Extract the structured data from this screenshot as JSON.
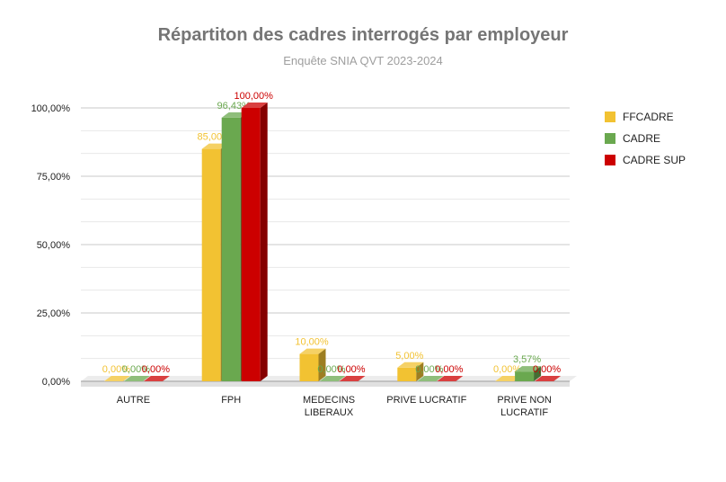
{
  "chart_data": {
    "type": "bar",
    "title": "Répartiton des cadres interrogés par employeur",
    "subtitle": "Enquête SNIA QVT 2023-2024",
    "categories": [
      "AUTRE",
      "FPH",
      "MEDECINS LIBERAUX",
      "PRIVE LUCRATIF",
      "PRIVE NON LUCRATIF"
    ],
    "category_lines": [
      [
        "AUTRE"
      ],
      [
        "FPH"
      ],
      [
        "MEDECINS",
        "LIBERAUX"
      ],
      [
        "PRIVE LUCRATIF"
      ],
      [
        "PRIVE NON",
        "LUCRATIF"
      ]
    ],
    "series": [
      {
        "name": "FFCADRE",
        "color": "#f2c232",
        "values": [
          0,
          85,
          10,
          5,
          0
        ],
        "labels": [
          "0,00%",
          "85,00%",
          "10,00%",
          "5,00%",
          "0,00%"
        ]
      },
      {
        "name": "CADRE",
        "color": "#6aa84f",
        "values": [
          0,
          96.43,
          0,
          0,
          3.57
        ],
        "labels": [
          "0,00%",
          "96,43%",
          "0,00%",
          "0,00%",
          "3,57%"
        ]
      },
      {
        "name": "CADRE SUP",
        "color": "#cc0000",
        "values": [
          0,
          100,
          0,
          0,
          0
        ],
        "labels": [
          "0,00%",
          "100,00%",
          "0,00%",
          "0,00%",
          "0,00%"
        ]
      }
    ],
    "y_ticks": [
      0,
      25,
      50,
      75,
      100
    ],
    "y_tick_labels": [
      "0,00%",
      "25,00%",
      "50,00%",
      "75,00%",
      "100,00%"
    ],
    "ylim": [
      0,
      100
    ],
    "grid": true,
    "legend": "right",
    "chart_style": "3d-bar"
  }
}
